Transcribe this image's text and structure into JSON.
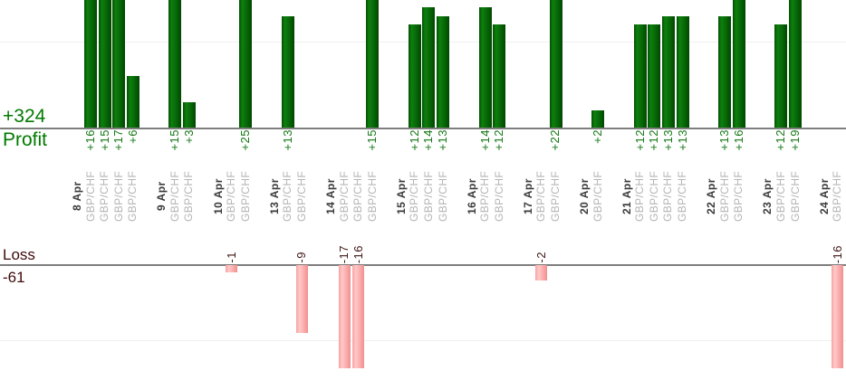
{
  "chart_data": {
    "type": "bar",
    "title": "",
    "profit_axis": {
      "name": "Profit",
      "total": "+324",
      "total_value": 324,
      "gridline_at": 10
    },
    "loss_axis": {
      "name": "Loss",
      "total": "-61",
      "total_value": -61,
      "gridline_at": -10
    },
    "groups": [
      {
        "date": "8 Apr",
        "trades": [
          {
            "pair": "GBP/CHF",
            "value": 16,
            "label": "+16"
          },
          {
            "pair": "GBP/CHF",
            "value": 15,
            "label": "+15"
          },
          {
            "pair": "GBP/CHF",
            "value": 17,
            "label": "+17"
          },
          {
            "pair": "GBP/CHF",
            "value": 6,
            "label": "+6"
          }
        ]
      },
      {
        "date": "9 Apr",
        "trades": [
          {
            "pair": "GBP/CHF",
            "value": 15,
            "label": "+15"
          },
          {
            "pair": "GBP/CHF",
            "value": 3,
            "label": "+3"
          }
        ]
      },
      {
        "date": "10 Apr",
        "trades": [
          {
            "pair": "GBP/CHF",
            "value": -1,
            "label": "-1"
          },
          {
            "pair": "GBP/CHF",
            "value": 25,
            "label": "+25"
          }
        ]
      },
      {
        "date": "13 Apr",
        "trades": [
          {
            "pair": "GBP/CHF",
            "value": 13,
            "label": "+13"
          },
          {
            "pair": "GBP/CHF",
            "value": -9,
            "label": "-9"
          }
        ]
      },
      {
        "date": "14 Apr",
        "trades": [
          {
            "pair": "GBP/CHF",
            "value": -17,
            "label": "-17"
          },
          {
            "pair": "GBP/CHF",
            "value": -16,
            "label": "-16"
          },
          {
            "pair": "GBP/CHF",
            "value": 15,
            "label": "+15"
          }
        ]
      },
      {
        "date": "15 Apr",
        "trades": [
          {
            "pair": "GBP/CHF",
            "value": 12,
            "label": "+12"
          },
          {
            "pair": "GBP/CHF",
            "value": 14,
            "label": "+14"
          },
          {
            "pair": "GBP/CHF",
            "value": 13,
            "label": "+13"
          }
        ]
      },
      {
        "date": "16 Apr",
        "trades": [
          {
            "pair": "GBP/CHF",
            "value": 14,
            "label": "+14"
          },
          {
            "pair": "GBP/CHF",
            "value": 12,
            "label": "+12"
          }
        ]
      },
      {
        "date": "17 Apr",
        "trades": [
          {
            "pair": "GBP/CHF",
            "value": -2,
            "label": "-2"
          },
          {
            "pair": "GBP/CHF",
            "value": 22,
            "label": "+22"
          }
        ]
      },
      {
        "date": "20 Apr",
        "trades": [
          {
            "pair": "GBP/CHF",
            "value": 2,
            "label": "+2"
          }
        ]
      },
      {
        "date": "21 Apr",
        "trades": [
          {
            "pair": "GBP/CHF",
            "value": 12,
            "label": "+12"
          },
          {
            "pair": "GBP/CHF",
            "value": 12,
            "label": "+12"
          },
          {
            "pair": "GBP/CHF",
            "value": 13,
            "label": "+13"
          },
          {
            "pair": "GBP/CHF",
            "value": 13,
            "label": "+13"
          }
        ]
      },
      {
        "date": "22 Apr",
        "trades": [
          {
            "pair": "GBP/CHF",
            "value": 13,
            "label": "+13"
          },
          {
            "pair": "GBP/CHF",
            "value": 16,
            "label": "+16"
          }
        ]
      },
      {
        "date": "23 Apr",
        "trades": [
          {
            "pair": "GBP/CHF",
            "value": 12,
            "label": "+12"
          },
          {
            "pair": "GBP/CHF",
            "value": 19,
            "label": "+19"
          }
        ]
      },
      {
        "date": "24 Apr",
        "trades": [
          {
            "pair": "GBP/CHF",
            "value": -16,
            "label": "-16"
          }
        ]
      }
    ],
    "colors": {
      "profit_bar": "#0d800d",
      "loss_bar": "#fbabab",
      "profit_text": "#007a00",
      "loss_text": "#400a0a",
      "date_text": "#3a3a3a",
      "pair_text": "#b4b4b4",
      "axis_line": "#7e7e7e",
      "gridline": "#f0f0f0"
    }
  }
}
